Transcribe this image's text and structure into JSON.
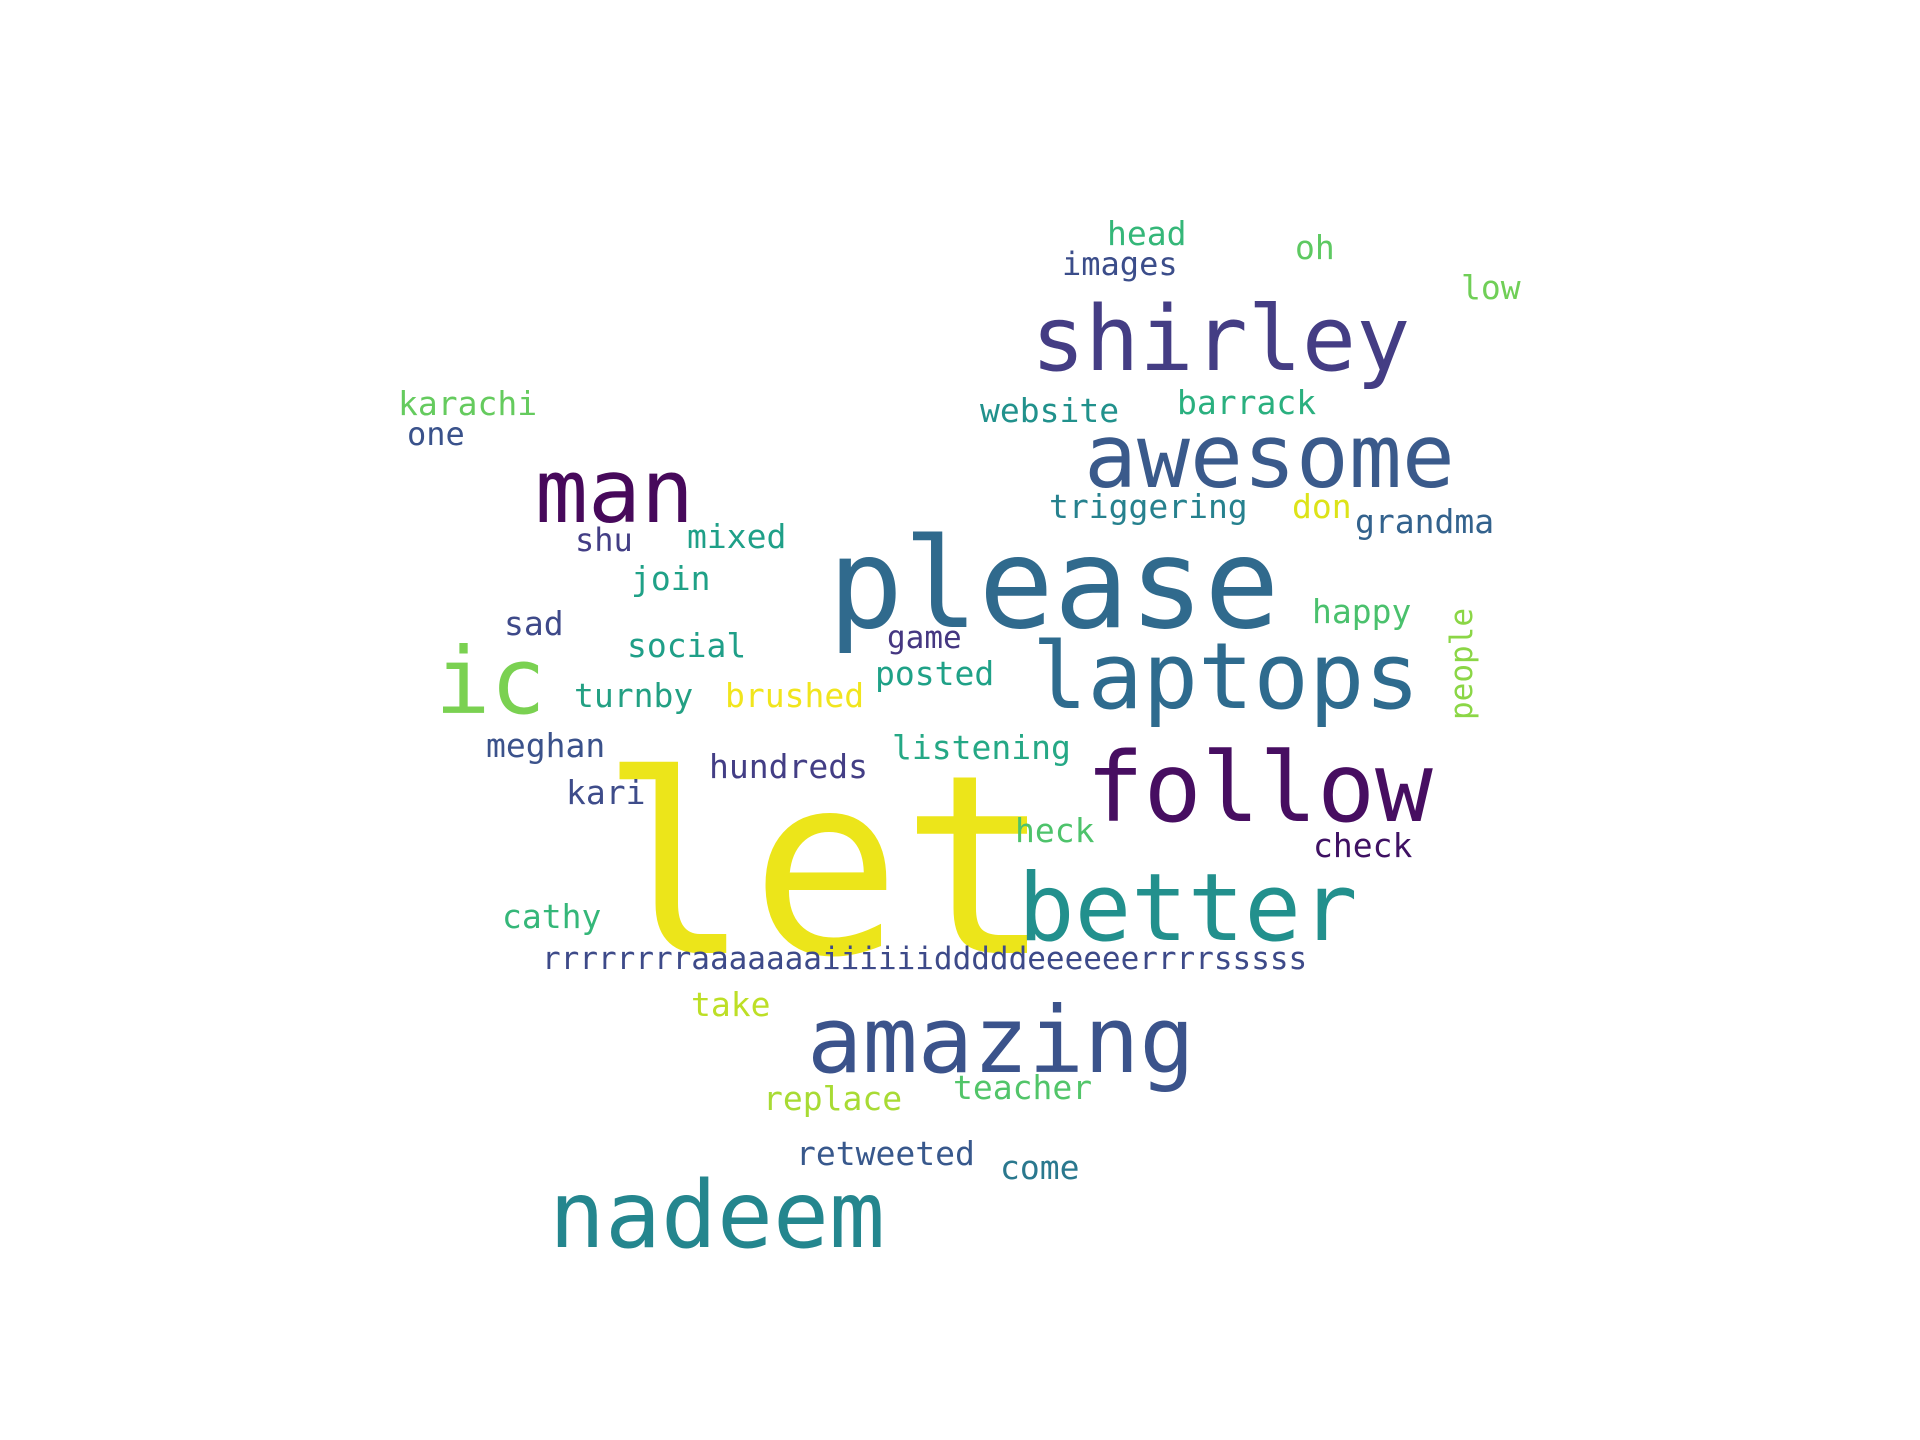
{
  "words": [
    {
      "text": "let",
      "color": "#ece51a"
    },
    {
      "text": "please",
      "color": "#306a8d"
    },
    {
      "text": "shirley",
      "color": "#443d84"
    },
    {
      "text": "awesome",
      "color": "#3a5a8b"
    },
    {
      "text": "man",
      "color": "#47095b"
    },
    {
      "text": "laptops",
      "color": "#2e6b8e"
    },
    {
      "text": "ic",
      "color": "#7ad151"
    },
    {
      "text": "follow",
      "color": "#470e61"
    },
    {
      "text": "better",
      "color": "#22908d"
    },
    {
      "text": "amazing",
      "color": "#3b538b"
    },
    {
      "text": "nadeem",
      "color": "#24868e"
    },
    {
      "text": "head",
      "color": "#35b779"
    },
    {
      "text": "oh",
      "color": "#5ec962"
    },
    {
      "text": "images",
      "color": "#3b4d8a"
    },
    {
      "text": "low",
      "color": "#70cf57"
    },
    {
      "text": "karachi",
      "color": "#65cb5e"
    },
    {
      "text": "website",
      "color": "#21918c"
    },
    {
      "text": "barrack",
      "color": "#2ab07f"
    },
    {
      "text": "one",
      "color": "#3a528b"
    },
    {
      "text": "triggering",
      "color": "#26818e"
    },
    {
      "text": "don",
      "color": "#dde318"
    },
    {
      "text": "grandma",
      "color": "#33628d"
    },
    {
      "text": "shu",
      "color": "#433e85"
    },
    {
      "text": "mixed",
      "color": "#1fa088"
    },
    {
      "text": "join",
      "color": "#1fa187"
    },
    {
      "text": "happy",
      "color": "#4ac16d"
    },
    {
      "text": "sad",
      "color": "#3e4989"
    },
    {
      "text": "social",
      "color": "#1f9f88"
    },
    {
      "text": "game",
      "color": "#453781"
    },
    {
      "text": "people",
      "color": "#8bd646"
    },
    {
      "text": "posted",
      "color": "#1fa187"
    },
    {
      "text": "turnby",
      "color": "#23a083"
    },
    {
      "text": "brushed",
      "color": "#f1e51d"
    },
    {
      "text": "meghan",
      "color": "#3b528b"
    },
    {
      "text": "listening",
      "color": "#25a885"
    },
    {
      "text": "hundreds",
      "color": "#433e85"
    },
    {
      "text": "kari",
      "color": "#3e4c8a"
    },
    {
      "text": "heck",
      "color": "#4ec36b"
    },
    {
      "text": "check",
      "color": "#3f1163"
    },
    {
      "text": "cathy",
      "color": "#35b779"
    },
    {
      "text": "rrrrrrrraaaaaaaiiiiiidddddeeeeeerrrrsssss",
      "color": "#3d4a89"
    },
    {
      "text": "take",
      "color": "#bddf26"
    },
    {
      "text": "teacher",
      "color": "#52c569"
    },
    {
      "text": "replace",
      "color": "#a8db34"
    },
    {
      "text": "retweeted",
      "color": "#38588c"
    },
    {
      "text": "come",
      "color": "#2a788e"
    }
  ]
}
